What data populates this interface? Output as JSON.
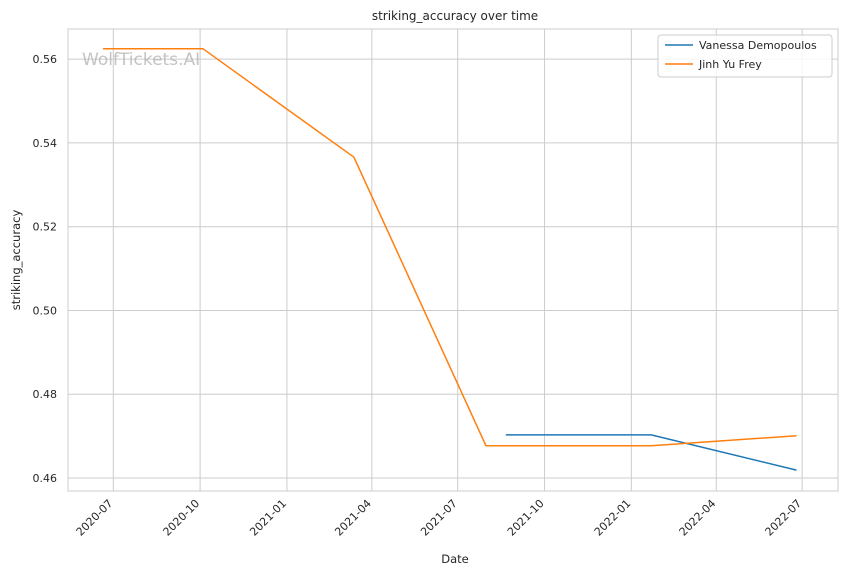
{
  "chart_data": {
    "type": "line",
    "title": "striking_accuracy over time",
    "xlabel": "Date",
    "ylabel": "striking_accuracy",
    "watermark": "WolfTickets.AI",
    "x_ticks": [
      "2020-07",
      "2020-10",
      "2021-01",
      "2021-04",
      "2021-07",
      "2021-10",
      "2022-01",
      "2022-04",
      "2022-07"
    ],
    "y_ticks": [
      "0.46",
      "0.48",
      "0.50",
      "0.52",
      "0.54",
      "0.56"
    ],
    "xlim": [
      "2020-05-14",
      "2022-08-08"
    ],
    "ylim": [
      0.4569,
      0.5672
    ],
    "grid": true,
    "legend_position": "top-right",
    "series": [
      {
        "name": "Vanessa Demopoulos",
        "color": "#1f77b4",
        "points": [
          {
            "x": "2021-08-21",
            "y": 0.4703
          },
          {
            "x": "2022-01-22",
            "y": 0.4703
          },
          {
            "x": "2022-06-25",
            "y": 0.4619
          }
        ]
      },
      {
        "name": "Jinh Yu Frey",
        "color": "#ff7f0e",
        "points": [
          {
            "x": "2020-06-20",
            "y": 0.5625
          },
          {
            "x": "2020-10-04",
            "y": 0.5625
          },
          {
            "x": "2021-03-13",
            "y": 0.5366
          },
          {
            "x": "2021-07-31",
            "y": 0.4677
          },
          {
            "x": "2022-01-22",
            "y": 0.4677
          },
          {
            "x": "2022-06-25",
            "y": 0.4701
          }
        ]
      }
    ]
  }
}
